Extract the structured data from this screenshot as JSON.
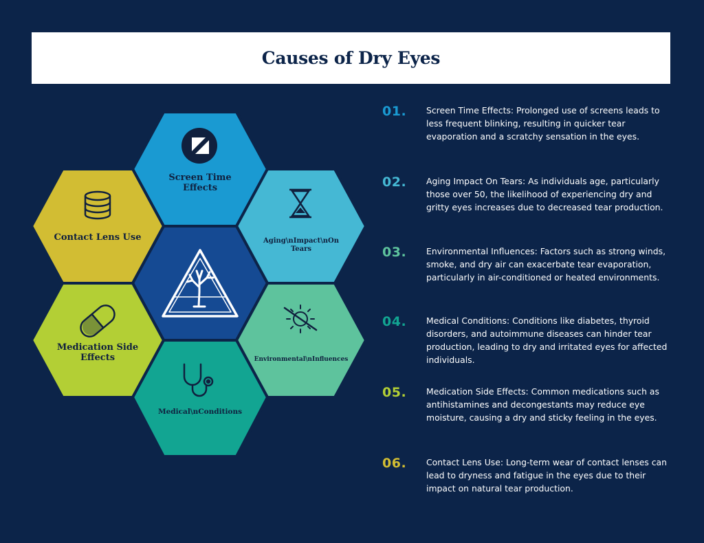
{
  "title": "Causes of Dry Eyes",
  "colors": {
    "background": "#0c2449",
    "screen": "#1a9ad2",
    "aging": "#45b8d4",
    "environment": "#5ec39d",
    "medical": "#12a592",
    "medication": "#b3cf35",
    "contact": "#d2bd33",
    "center": "#154a93"
  },
  "hexagons": [
    {
      "id": "screen-time",
      "label": "Screen Time Effects",
      "icon": "screen-icon"
    },
    {
      "id": "aging",
      "label": "Aging\\nImpact\\nOn Tears",
      "icon": "hourglass-icon"
    },
    {
      "id": "environment",
      "label": "Environmental\\nInfluences",
      "icon": "sun-crossed-icon"
    },
    {
      "id": "medical",
      "label": "Medical\\nConditions",
      "icon": "stethoscope-icon"
    },
    {
      "id": "medication",
      "label": "Medication Side Effects",
      "icon": "pill-icon"
    },
    {
      "id": "contact",
      "label": "Contact Lens Use",
      "icon": "lens-case-icon"
    },
    {
      "id": "center",
      "label": "",
      "icon": "dry-tree-warning-icon"
    }
  ],
  "items": [
    {
      "num": "01.",
      "text": "Screen Time Effects: Prolonged use of screens leads to less frequent blinking, resulting in quicker tear evaporation and a scratchy sensation in the eyes.",
      "color": "#1a9ad2"
    },
    {
      "num": "02.",
      "text": "Aging Impact On Tears: As individuals age, particularly those over 50, the likelihood of experiencing dry and gritty eyes increases due to decreased tear production.",
      "color": "#45b8d4"
    },
    {
      "num": "03.",
      "text": "Environmental Influences: Factors such as strong winds, smoke, and dry air can exacerbate tear evaporation, particularly in air-conditioned or heated environments.",
      "color": "#5ec39d"
    },
    {
      "num": "04.",
      "text": "Medical Conditions: Conditions like diabetes, thyroid disorders, and autoimmune diseases can hinder tear production, leading to dry and irritated eyes for affected individuals.",
      "color": "#12a592"
    },
    {
      "num": "05.",
      "text": "Medication Side Effects: Common medications such as antihistamines and decongestants may reduce eye moisture, causing a dry and sticky feeling in the eyes.",
      "color": "#b3cf35"
    },
    {
      "num": "06.",
      "text": "Contact Lens Use: Long-term wear of contact lenses can lead to dryness and fatigue in the eyes due to their impact on natural tear production.",
      "color": "#d2bd33"
    }
  ]
}
